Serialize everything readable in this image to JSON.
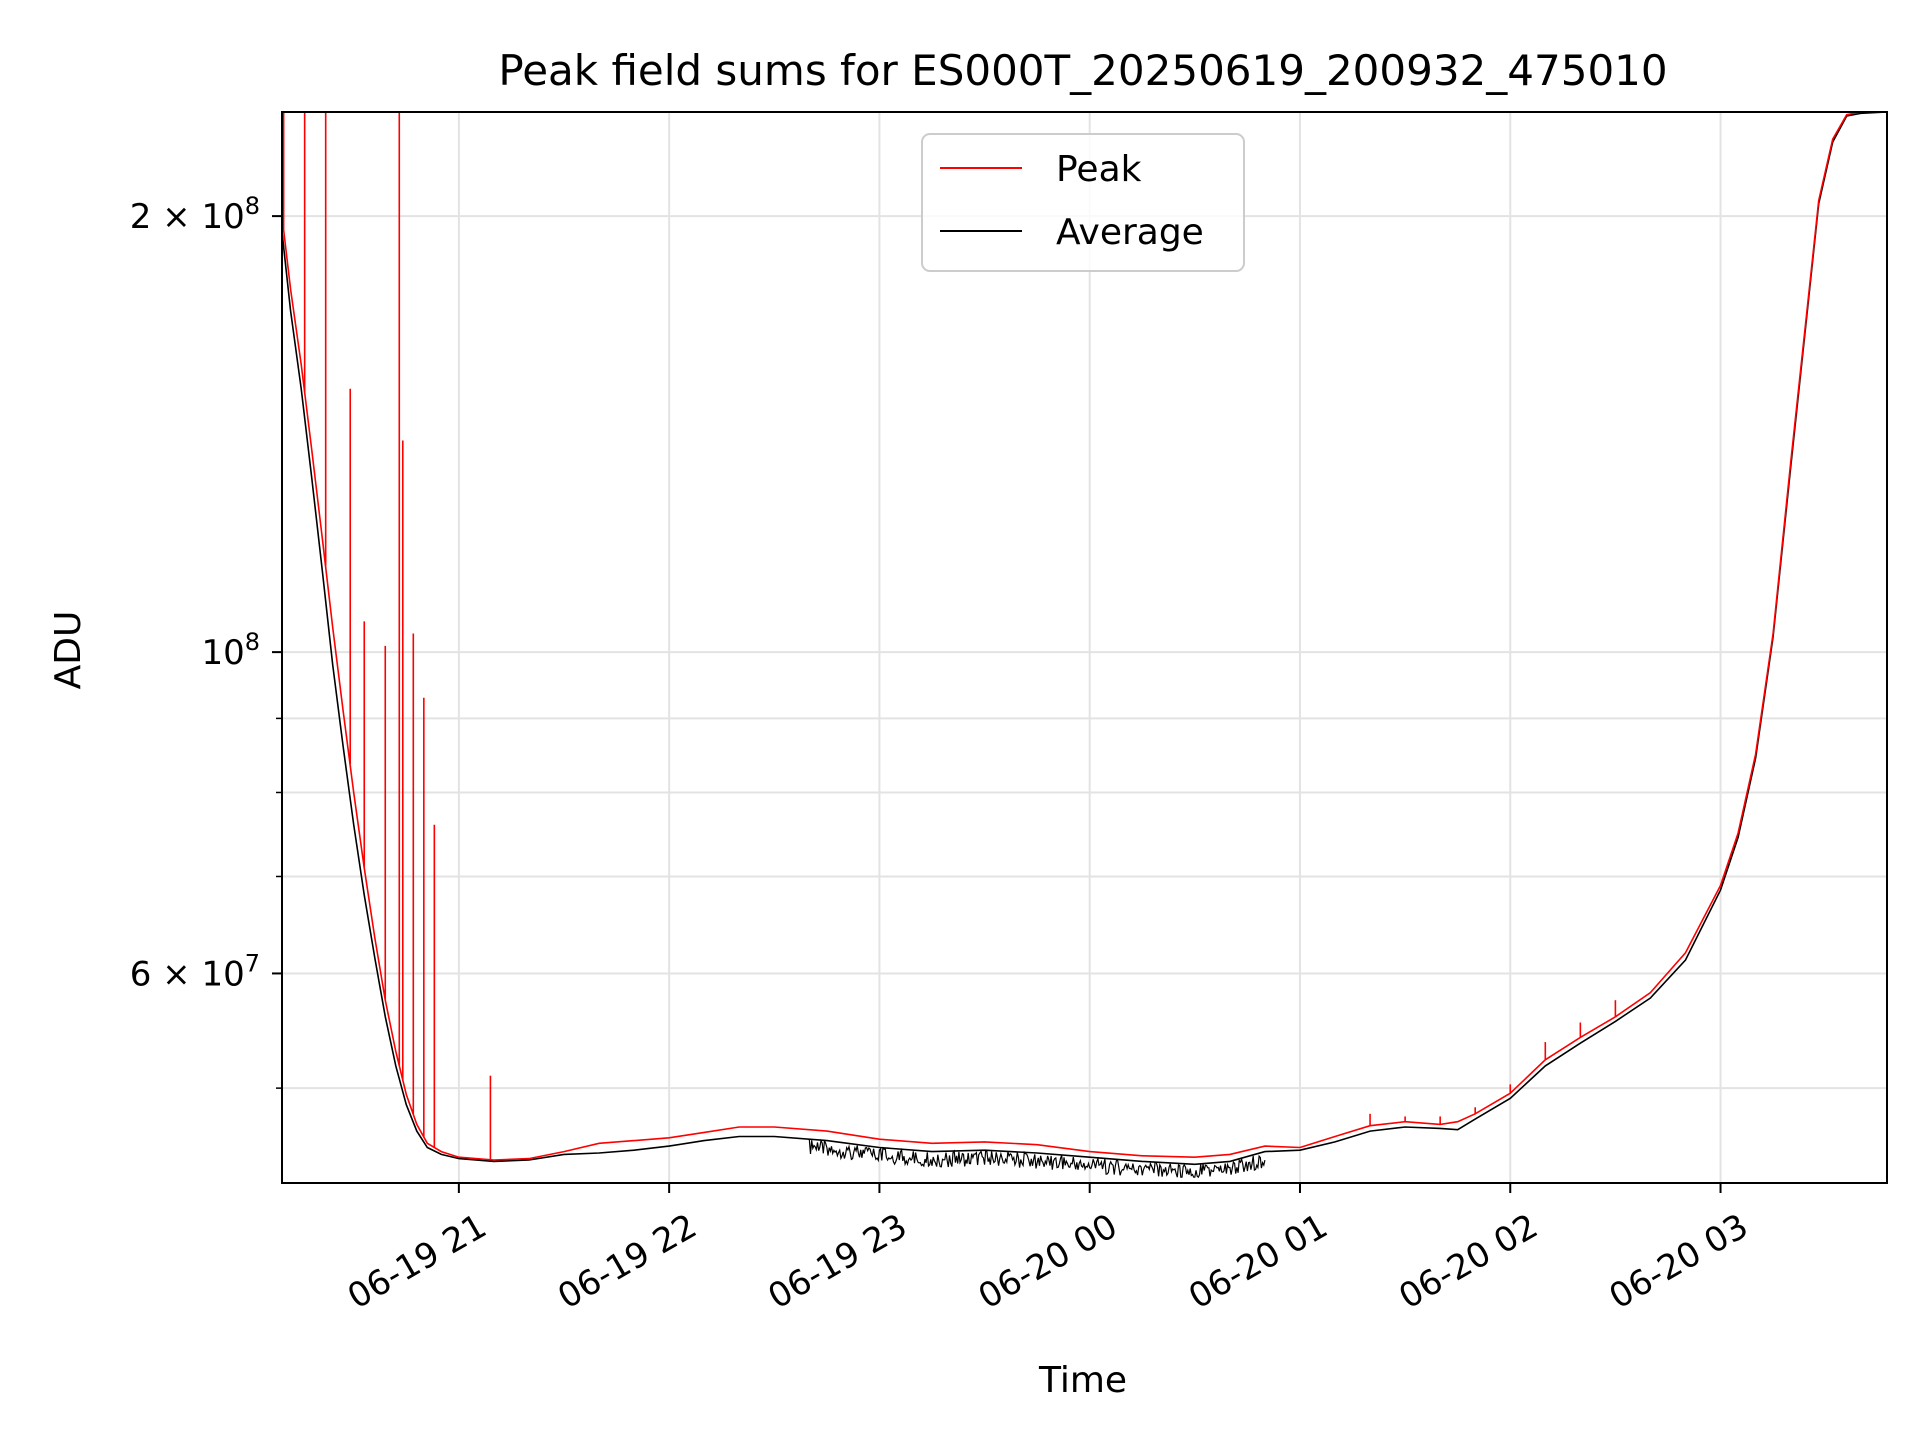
{
  "chart_data": {
    "type": "line",
    "title": "Peak field sums for ES000T_20250619_200932_475010",
    "xlabel": "Time",
    "ylabel": "ADU",
    "y_scale": "log",
    "ylim": [
      43000000,
      236000000
    ],
    "xlim": [
      "2025-06-19 20:09:32",
      "2025-06-20 03:47:30"
    ],
    "grid": true,
    "legend_position": "top-center",
    "x_ticks": [
      {
        "t": "2025-06-19 21:00",
        "label": "06-19 21"
      },
      {
        "t": "2025-06-19 22:00",
        "label": "06-19 22"
      },
      {
        "t": "2025-06-19 23:00",
        "label": "06-19 23"
      },
      {
        "t": "2025-06-20 00:00",
        "label": "06-20 00"
      },
      {
        "t": "2025-06-20 01:00",
        "label": "06-20 01"
      },
      {
        "t": "2025-06-20 02:00",
        "label": "06-20 02"
      },
      {
        "t": "2025-06-20 03:00",
        "label": "06-20 03"
      }
    ],
    "y_ticks": [
      {
        "value": 60000000,
        "label": "6 × 10",
        "exp": "7"
      },
      {
        "value": 100000000,
        "label": "10",
        "exp": "8"
      },
      {
        "value": 200000000,
        "label": "2 × 10",
        "exp": "8"
      }
    ],
    "y_minor_ticks": [
      50000000,
      70000000,
      80000000,
      90000000
    ],
    "series": [
      {
        "name": "Peak",
        "color": "#ff0000",
        "x": [
          "2025-06-19 20:09:32",
          "2025-06-19 20:12",
          "2025-06-19 20:15",
          "2025-06-19 20:18",
          "2025-06-19 20:21",
          "2025-06-19 20:24",
          "2025-06-19 20:27",
          "2025-06-19 20:30",
          "2025-06-19 20:33",
          "2025-06-19 20:36",
          "2025-06-19 20:39",
          "2025-06-19 20:42",
          "2025-06-19 20:45",
          "2025-06-19 20:48",
          "2025-06-19 20:51",
          "2025-06-19 20:55",
          "2025-06-19 21:00",
          "2025-06-19 21:10",
          "2025-06-19 21:20",
          "2025-06-19 21:30",
          "2025-06-19 21:40",
          "2025-06-19 21:50",
          "2025-06-19 22:00",
          "2025-06-19 22:10",
          "2025-06-19 22:20",
          "2025-06-19 22:30",
          "2025-06-19 22:45",
          "2025-06-19 23:00",
          "2025-06-19 23:15",
          "2025-06-19 23:30",
          "2025-06-19 23:45",
          "2025-06-20 00:00",
          "2025-06-20 00:15",
          "2025-06-20 00:30",
          "2025-06-20 00:40",
          "2025-06-20 00:50",
          "2025-06-20 01:00",
          "2025-06-20 01:10",
          "2025-06-20 01:20",
          "2025-06-20 01:30",
          "2025-06-20 01:40",
          "2025-06-20 01:45",
          "2025-06-20 01:50",
          "2025-06-20 02:00",
          "2025-06-20 02:10",
          "2025-06-20 02:20",
          "2025-06-20 02:30",
          "2025-06-20 02:40",
          "2025-06-20 02:50",
          "2025-06-20 03:00",
          "2025-06-20 03:05",
          "2025-06-20 03:10",
          "2025-06-20 03:15",
          "2025-06-20 03:20",
          "2025-06-20 03:25",
          "2025-06-20 03:28",
          "2025-06-20 03:32",
          "2025-06-20 03:36",
          "2025-06-20 03:40",
          "2025-06-20 03:47:30"
        ],
        "values": [
          200000000,
          178000000,
          158000000,
          138000000,
          120000000,
          104000000,
          91000000,
          80000000,
          71000000,
          63500000,
          57500000,
          53000000,
          49500000,
          47200000,
          45800000,
          45200000,
          44800000,
          44600000,
          44700000,
          45200000,
          45800000,
          46000000,
          46200000,
          46600000,
          47000000,
          47000000,
          46700000,
          46100000,
          45800000,
          45900000,
          45700000,
          45200000,
          44900000,
          44800000,
          45000000,
          45600000,
          45500000,
          46300000,
          47100000,
          47400000,
          47200000,
          47400000,
          48000000,
          49600000,
          52300000,
          54200000,
          56000000,
          58200000,
          62000000,
          69000000,
          75000000,
          85000000,
          103000000,
          135000000,
          175000000,
          205000000,
          226000000,
          235000000,
          236000000,
          236000000
        ],
        "spikes": [
          {
            "t": "2025-06-19 20:10",
            "value": 236000000
          },
          {
            "t": "2025-06-19 20:16",
            "value": 236000000
          },
          {
            "t": "2025-06-19 20:22",
            "value": 236000000
          },
          {
            "t": "2025-06-19 20:29",
            "value": 152000000
          },
          {
            "t": "2025-06-19 20:33",
            "value": 105000000
          },
          {
            "t": "2025-06-19 20:39",
            "value": 101000000
          },
          {
            "t": "2025-06-19 20:43",
            "value": 236000000
          },
          {
            "t": "2025-06-19 20:44",
            "value": 140000000
          },
          {
            "t": "2025-06-19 20:47",
            "value": 103000000
          },
          {
            "t": "2025-06-19 20:50",
            "value": 93000000
          },
          {
            "t": "2025-06-19 20:53",
            "value": 76000000
          },
          {
            "t": "2025-06-19 21:09",
            "value": 51000000
          },
          {
            "t": "2025-06-20 01:20",
            "value": 48000000
          },
          {
            "t": "2025-06-20 01:30",
            "value": 47800000
          },
          {
            "t": "2025-06-20 01:40",
            "value": 47800000
          },
          {
            "t": "2025-06-20 01:50",
            "value": 48500000
          },
          {
            "t": "2025-06-20 02:00",
            "value": 50300000
          },
          {
            "t": "2025-06-20 02:10",
            "value": 53800000
          },
          {
            "t": "2025-06-20 02:20",
            "value": 55500000
          },
          {
            "t": "2025-06-20 02:30",
            "value": 57500000
          }
        ]
      },
      {
        "name": "Average",
        "color": "#000000",
        "x": [
          "2025-06-19 20:09:32",
          "2025-06-19 20:12",
          "2025-06-19 20:15",
          "2025-06-19 20:18",
          "2025-06-19 20:21",
          "2025-06-19 20:24",
          "2025-06-19 20:27",
          "2025-06-19 20:30",
          "2025-06-19 20:33",
          "2025-06-19 20:36",
          "2025-06-19 20:39",
          "2025-06-19 20:42",
          "2025-06-19 20:45",
          "2025-06-19 20:48",
          "2025-06-19 20:51",
          "2025-06-19 20:55",
          "2025-06-19 21:00",
          "2025-06-19 21:10",
          "2025-06-19 21:20",
          "2025-06-19 21:30",
          "2025-06-19 21:40",
          "2025-06-19 21:50",
          "2025-06-19 22:00",
          "2025-06-19 22:10",
          "2025-06-19 22:20",
          "2025-06-19 22:30",
          "2025-06-19 22:45",
          "2025-06-19 23:00",
          "2025-06-19 23:15",
          "2025-06-19 23:30",
          "2025-06-19 23:45",
          "2025-06-20 00:00",
          "2025-06-20 00:15",
          "2025-06-20 00:30",
          "2025-06-20 00:40",
          "2025-06-20 00:50",
          "2025-06-20 01:00",
          "2025-06-20 01:10",
          "2025-06-20 01:20",
          "2025-06-20 01:30",
          "2025-06-20 01:40",
          "2025-06-20 01:45",
          "2025-06-20 01:50",
          "2025-06-20 02:00",
          "2025-06-20 02:10",
          "2025-06-20 02:20",
          "2025-06-20 02:30",
          "2025-06-20 02:40",
          "2025-06-20 02:50",
          "2025-06-20 03:00",
          "2025-06-20 03:05",
          "2025-06-20 03:10",
          "2025-06-20 03:15",
          "2025-06-20 03:20",
          "2025-06-20 03:25",
          "2025-06-20 03:28",
          "2025-06-20 03:32",
          "2025-06-20 03:36",
          "2025-06-20 03:40",
          "2025-06-20 03:47:30"
        ],
        "values": [
          195000000,
          172000000,
          152000000,
          132000000,
          114000000,
          98000000,
          86000000,
          76000000,
          68000000,
          61500000,
          56000000,
          51800000,
          48700000,
          46700000,
          45500000,
          45000000,
          44700000,
          44500000,
          44600000,
          45000000,
          45100000,
          45300000,
          45600000,
          46000000,
          46300000,
          46300000,
          46000000,
          45500000,
          45200000,
          45300000,
          45100000,
          44800000,
          44500000,
          44300000,
          44500000,
          45200000,
          45300000,
          45900000,
          46700000,
          47000000,
          46900000,
          46800000,
          47600000,
          49200000,
          51800000,
          53700000,
          55600000,
          57700000,
          61300000,
          68500000,
          74500000,
          84500000,
          102500000,
          134000000,
          174000000,
          204000000,
          225000000,
          234500000,
          235500000,
          236000000
        ],
        "noise_start": "2025-06-19 22:40",
        "noise_end": "2025-06-20 00:50",
        "noise_min": 43400000
      }
    ]
  }
}
